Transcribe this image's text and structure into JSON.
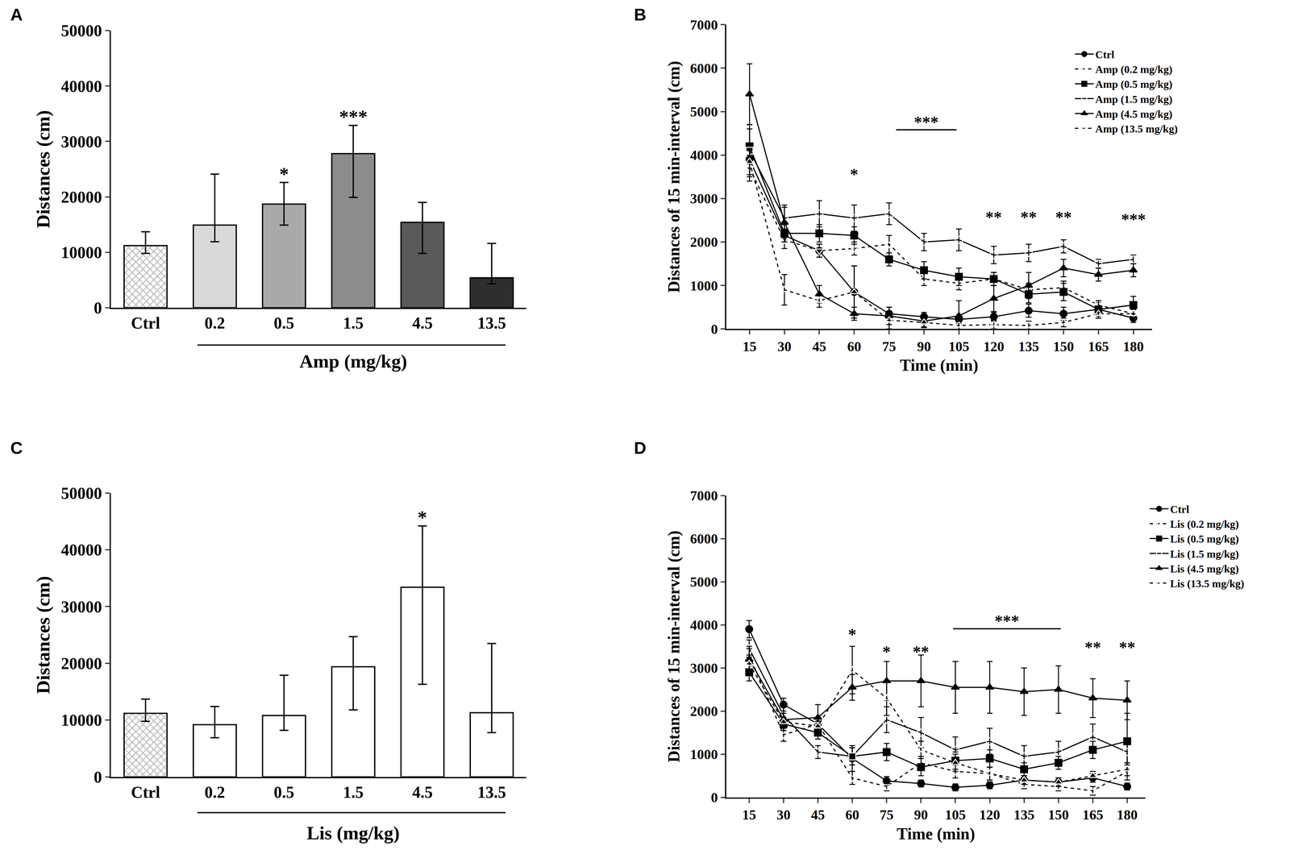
{
  "chart_data": [
    {
      "type": "bar",
      "title": "A",
      "categories": [
        "Ctrl",
        "0.2",
        "0.5",
        "1.5",
        "4.5",
        "13.5"
      ],
      "values": [
        11200,
        14900,
        18700,
        27800,
        15400,
        5400
      ],
      "error_plus": [
        2500,
        9200,
        3900,
        5100,
        3600,
        6200
      ],
      "error_minus": [
        1400,
        3000,
        3800,
        7900,
        5600,
        1100
      ],
      "colors": [
        "#bdbdbd",
        "#d9d9d9",
        "#a9a9a9",
        "#8c8c8c",
        "#5a5a5a",
        "#2e2e2e"
      ],
      "x_label": "Amp (mg/kg)",
      "y_label": "Distances (cm)",
      "ylim": [
        0,
        50000
      ],
      "yticks": [
        0,
        10000,
        20000,
        30000,
        40000,
        50000
      ],
      "grid": false,
      "annotations": [
        {
          "category": "0.5",
          "text": "*"
        },
        {
          "category": "1.5",
          "text": "***"
        }
      ]
    },
    {
      "type": "line",
      "title": "B",
      "x": [
        15,
        30,
        45,
        60,
        75,
        90,
        105,
        120,
        135,
        150,
        165,
        180
      ],
      "series": [
        {
          "name": "Ctrl",
          "color": "#000000",
          "marker": "circle",
          "line_style": "solid",
          "values": [
            3900,
            2150,
            1800,
            850,
            350,
            280,
            220,
            280,
            420,
            350,
            450,
            250
          ],
          "error": [
            200,
            150,
            150,
            600,
            150,
            100,
            100,
            100,
            150,
            150,
            150,
            100
          ]
        },
        {
          "name": "Amp (0.2 mg/kg)",
          "color": "#000000",
          "marker": "triangle-down-open",
          "line_style": "dash",
          "values": [
            3700,
            2050,
            1800,
            1850,
            1950,
            1150,
            1050,
            1150,
            900,
            950,
            550,
            350
          ],
          "error": [
            300,
            200,
            150,
            150,
            200,
            150,
            150,
            150,
            150,
            150,
            100,
            100
          ]
        },
        {
          "name": "Amp (0.5 mg/kg)",
          "color": "#000000",
          "marker": "square",
          "line_style": "solid",
          "values": [
            4200,
            2200,
            2200,
            2150,
            1600,
            1350,
            1200,
            1150,
            800,
            850,
            450,
            550
          ],
          "error": [
            400,
            200,
            200,
            200,
            150,
            200,
            200,
            150,
            200,
            200,
            200,
            200
          ]
        },
        {
          "name": "Amp (1.5 mg/kg)",
          "color": "#000000",
          "marker": "square-open",
          "line_style": "solid",
          "values": [
            4100,
            2550,
            2650,
            2550,
            2650,
            2000,
            2050,
            1700,
            1750,
            1900,
            1500,
            1600
          ],
          "error": [
            600,
            300,
            300,
            300,
            250,
            200,
            250,
            200,
            200,
            150,
            100,
            100
          ]
        },
        {
          "name": "Amp (4.5 mg/kg)",
          "color": "#000000",
          "marker": "triangle-up",
          "line_style": "solid",
          "values": [
            5400,
            2450,
            800,
            350,
            300,
            180,
            300,
            700,
            1000,
            1400,
            1250,
            1350
          ],
          "error": [
            700,
            350,
            200,
            150,
            200,
            150,
            350,
            300,
            300,
            200,
            150,
            150
          ]
        },
        {
          "name": "Amp (13.5 mg/kg)",
          "color": "#000000",
          "marker": "triangle-up-open",
          "line_style": "dash",
          "values": [
            3850,
            900,
            650,
            850,
            200,
            150,
            80,
            100,
            80,
            150,
            350,
            350
          ],
          "error": [
            300,
            350,
            150,
            600,
            200,
            100,
            100,
            100,
            100,
            100,
            100,
            100
          ]
        }
      ],
      "x_label": "Time (min)",
      "y_label": "Distances of 15 min-interval (cm)",
      "xlim": [
        5,
        188
      ],
      "xticks": [
        15,
        30,
        45,
        60,
        75,
        90,
        105,
        120,
        135,
        150,
        165,
        180
      ],
      "ylim": [
        0,
        7000
      ],
      "yticks": [
        0,
        1000,
        2000,
        3000,
        4000,
        5000,
        6000,
        7000
      ],
      "grid": false,
      "legend": "top right",
      "annotations": [
        {
          "x": 60,
          "y": 3330,
          "text": "*"
        },
        {
          "x": [
            78,
            104
          ],
          "y": 4580,
          "text": "***"
        },
        {
          "x": 120,
          "y": 2350,
          "text": "**"
        },
        {
          "x": 135,
          "y": 2350,
          "text": "**"
        },
        {
          "x": 150,
          "y": 2350,
          "text": "**"
        },
        {
          "x": 180,
          "y": 2300,
          "text": "***"
        }
      ]
    },
    {
      "type": "bar",
      "title": "C",
      "categories": [
        "Ctrl",
        "0.2",
        "0.5",
        "1.5",
        "4.5",
        "13.5"
      ],
      "values": [
        11200,
        9200,
        10800,
        19400,
        33400,
        11300
      ],
      "error_plus": [
        2500,
        3200,
        7100,
        5300,
        10800,
        12200
      ],
      "error_minus": [
        1400,
        2300,
        2600,
        7600,
        17100,
        3500
      ],
      "colors": [
        "#bdbdbd",
        "#ffffff",
        "#ffffff",
        "#ffffff",
        "#ffffff",
        "#ffffff"
      ],
      "x_label": "Lis (mg/kg)",
      "y_label": "Distances (cm)",
      "ylim": [
        0,
        50000
      ],
      "yticks": [
        0,
        10000,
        20000,
        30000,
        40000,
        50000
      ],
      "grid": false,
      "annotations": [
        {
          "category": "4.5",
          "text": "*"
        }
      ]
    },
    {
      "type": "line",
      "title": "D",
      "x": [
        15,
        30,
        45,
        60,
        75,
        90,
        105,
        120,
        135,
        150,
        165,
        180
      ],
      "series": [
        {
          "name": "Ctrl",
          "color": "#000000",
          "marker": "circle",
          "line_style": "solid",
          "values": [
            3900,
            2150,
            1700,
            900,
            380,
            320,
            230,
            280,
            400,
            350,
            450,
            250
          ],
          "error": [
            200,
            150,
            150,
            300,
            100,
            80,
            80,
            80,
            100,
            100,
            100,
            80
          ]
        },
        {
          "name": "Lis (0.2 mg/kg)",
          "color": "#000000",
          "marker": "triangle-down-open",
          "line_style": "dash",
          "values": [
            3300,
            1450,
            1700,
            450,
            250,
            800,
            600,
            550,
            300,
            250,
            150,
            600
          ],
          "error": [
            200,
            150,
            150,
            150,
            100,
            150,
            150,
            150,
            100,
            100,
            100,
            200
          ]
        },
        {
          "name": "Lis (0.5 mg/kg)",
          "color": "#000000",
          "marker": "square",
          "line_style": "solid",
          "values": [
            2900,
            1700,
            1500,
            950,
            1050,
            700,
            850,
            900,
            650,
            800,
            1100,
            1300
          ],
          "error": [
            200,
            150,
            150,
            200,
            200,
            200,
            200,
            200,
            150,
            150,
            200,
            650
          ]
        },
        {
          "name": "Lis (1.5 mg/kg)",
          "color": "#000000",
          "marker": "square-open",
          "line_style": "solid",
          "values": [
            3450,
            1900,
            1050,
            950,
            1800,
            1500,
            1100,
            1300,
            950,
            1050,
            1400,
            1050
          ],
          "error": [
            200,
            200,
            150,
            200,
            300,
            350,
            300,
            300,
            250,
            250,
            300,
            300
          ]
        },
        {
          "name": "Lis (4.5 mg/kg)",
          "color": "#000000",
          "marker": "triangle-up",
          "line_style": "solid",
          "values": [
            3200,
            1800,
            1850,
            2550,
            2700,
            2700,
            2550,
            2550,
            2450,
            2500,
            2300,
            2250
          ],
          "error": [
            250,
            200,
            300,
            300,
            450,
            600,
            600,
            600,
            550,
            550,
            450,
            450
          ]
        },
        {
          "name": "Lis (13.5 mg/kg)",
          "color": "#000000",
          "marker": "triangle-up-open",
          "line_style": "dash",
          "values": [
            3100,
            1750,
            1650,
            2950,
            2300,
            1100,
            800,
            550,
            400,
            350,
            500,
            650
          ],
          "error": [
            200,
            200,
            200,
            550,
            400,
            200,
            200,
            150,
            100,
            100,
            100,
            150
          ]
        }
      ],
      "x_label": "Time (min)",
      "y_label": "Distances of 15 min-interval (cm)",
      "xlim": [
        5,
        188
      ],
      "xticks": [
        15,
        30,
        45,
        60,
        75,
        90,
        105,
        120,
        135,
        150,
        165,
        180
      ],
      "ylim": [
        0,
        7000
      ],
      "yticks": [
        0,
        1000,
        2000,
        3000,
        4000,
        5000,
        6000,
        7000
      ],
      "grid": false,
      "legend": "right",
      "annotations": [
        {
          "x": 60,
          "y": 3550,
          "text": "*"
        },
        {
          "x": 75,
          "y": 3150,
          "text": "*"
        },
        {
          "x": 90,
          "y": 3150,
          "text": "**"
        },
        {
          "x": [
            104,
            151
          ],
          "y": 3910,
          "text": "***"
        },
        {
          "x": 165,
          "y": 3250,
          "text": "**"
        },
        {
          "x": 180,
          "y": 3250,
          "text": "**"
        }
      ]
    }
  ]
}
